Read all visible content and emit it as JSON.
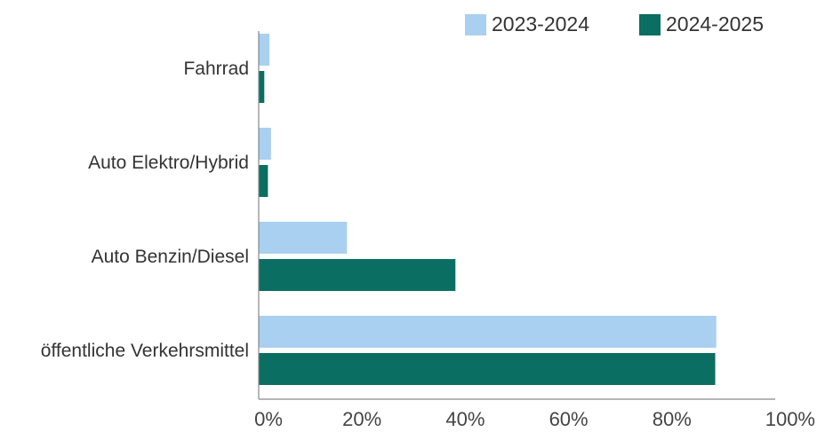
{
  "chart_data": {
    "type": "bar",
    "orientation": "horizontal",
    "categories": [
      "Fahrrad",
      "Auto Elektro/Hybrid",
      "Auto Benzin/Diesel",
      "öffentliche Verkehrsmittel"
    ],
    "series": [
      {
        "name": "2023-2024",
        "color": "#a9d0f0",
        "values": [
          2,
          2.3,
          17,
          88.5
        ]
      },
      {
        "name": "2024-2025",
        "color": "#0b6e62",
        "values": [
          1,
          1.7,
          38,
          88.3
        ]
      }
    ],
    "xlim": [
      0,
      100
    ],
    "xticks": [
      "0%",
      "20%",
      "40%",
      "60%",
      "80%",
      "100%"
    ],
    "xtick_values": [
      0,
      20,
      40,
      60,
      80,
      100
    ],
    "grid": false,
    "legend_position": "top-right"
  }
}
